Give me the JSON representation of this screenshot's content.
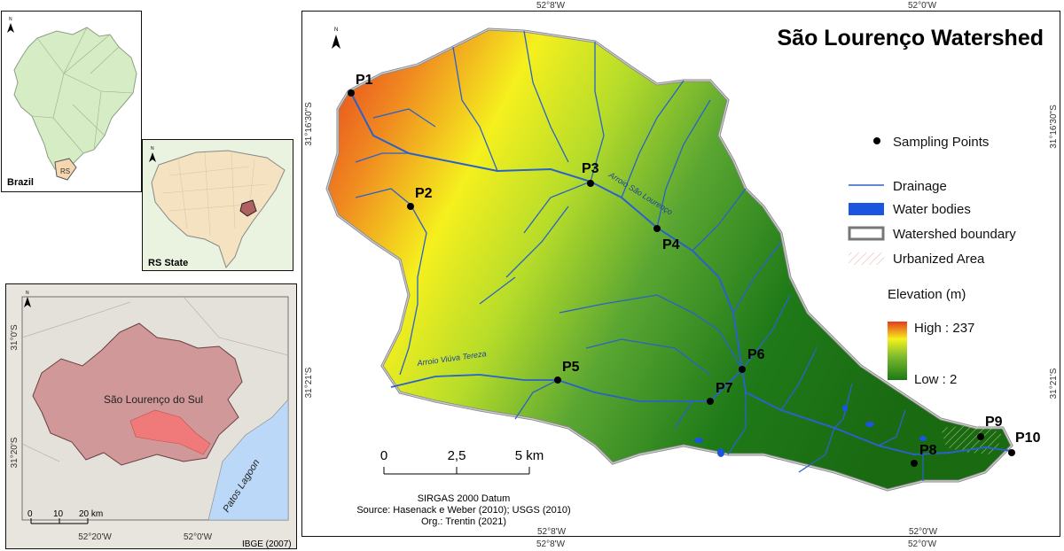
{
  "brazil_panel": {
    "label": "Brazil",
    "state_label": "RS",
    "north": "N"
  },
  "rs_panel": {
    "label": "RS State",
    "north": "N"
  },
  "municipality_panel": {
    "municipality": "São Lourenço do Sul",
    "lagoon": "Patos Lagoon",
    "north": "N",
    "lat_ticks": [
      "31°0'S",
      "31°20'S"
    ],
    "lon_ticks": [
      "52°20'W",
      "52°0'W"
    ],
    "scale": [
      "0",
      "10",
      "20 km"
    ],
    "source": "IBGE (2007)"
  },
  "main_map": {
    "title": "São Lourenço Watershed",
    "north": "N",
    "top_lon_ticks": [
      "52°8'W",
      "52°0'W"
    ],
    "bottom_lon_ticks": [
      "52°8'W",
      "52°0'W"
    ],
    "left_lat_ticks": [
      "31°16'30\"S",
      "31°21'S"
    ],
    "right_lat_ticks": [
      "31°16'30\"S",
      "31°21'S"
    ],
    "rivers": [
      "Arroio São Lourenço",
      "Arroio Viúva Tereza"
    ],
    "sampling_points": [
      "P1",
      "P2",
      "P3",
      "P4",
      "P5",
      "P6",
      "P7",
      "P8",
      "P9",
      "P10"
    ],
    "scale": [
      "0",
      "2,5",
      "5 km"
    ],
    "datum": "SIRGAS 2000 Datum",
    "source": "Source: Hasenack e Weber (2010); USGS (2010)",
    "org": "Org.: Trentin (2021)"
  },
  "legend": {
    "sampling": "Sampling Points",
    "drainage": "Drainage",
    "water": "Water bodies",
    "boundary": "Watershed boundary",
    "urban": "Urbanized Area",
    "elevation_title": "Elevation (m)",
    "high": "High : 237",
    "low": "Low : 2",
    "elevation_max": 237,
    "elevation_min": 2,
    "colors": {
      "high": "#e63a1e",
      "mid": "#f5f01e",
      "low": "#1a7a14",
      "drainage": "#2a62c9",
      "water": "#1a55e0"
    }
  }
}
